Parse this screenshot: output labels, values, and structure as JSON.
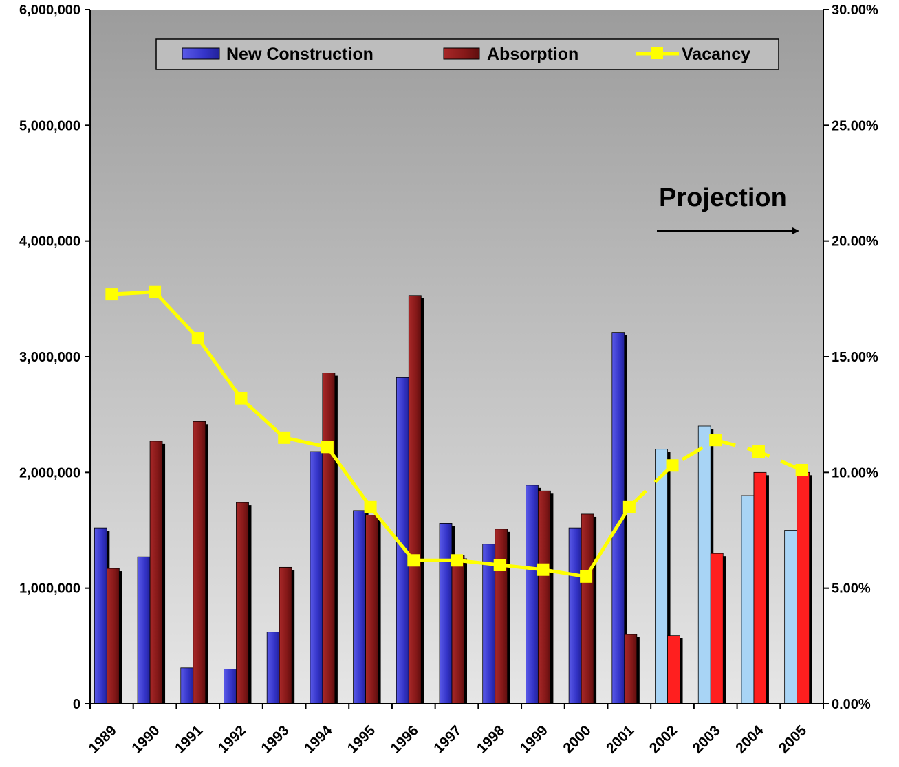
{
  "chart_data": {
    "type": "bar",
    "categories": [
      "1989",
      "1990",
      "1991",
      "1992",
      "1993",
      "1994",
      "1995",
      "1996",
      "1997",
      "1998",
      "1999",
      "2000",
      "2001",
      "2002",
      "2003",
      "2004",
      "2005"
    ],
    "series": [
      {
        "name": "New Construction",
        "kind": "bar",
        "axis": "left",
        "values": [
          1520000,
          1270000,
          310000,
          300000,
          620000,
          2180000,
          1670000,
          2820000,
          1560000,
          1380000,
          1890000,
          1520000,
          3210000,
          2200000,
          2400000,
          1800000,
          1500000
        ],
        "color": "#3f3fd0",
        "projection_color": "#a8d4f5"
      },
      {
        "name": "Absorption",
        "kind": "bar",
        "axis": "left",
        "values": [
          1170000,
          2270000,
          2440000,
          1740000,
          1180000,
          2860000,
          1630000,
          3530000,
          1280000,
          1510000,
          1840000,
          1640000,
          600000,
          590000,
          1300000,
          2000000,
          2000000
        ],
        "color": "#8b1a1a",
        "projection_color": "#ff1f1f"
      },
      {
        "name": "Vacancy",
        "kind": "line",
        "axis": "right",
        "values": [
          17.7,
          17.8,
          15.8,
          13.2,
          11.5,
          11.1,
          8.5,
          6.2,
          6.2,
          6.0,
          5.8,
          5.5,
          8.5,
          10.3,
          11.4,
          10.9,
          10.1
        ],
        "color": "#ffff00"
      }
    ],
    "projection_start_index": 13,
    "left_axis": {
      "ylim": [
        0,
        6000000
      ],
      "ticks": [
        0,
        1000000,
        2000000,
        3000000,
        4000000,
        5000000,
        6000000
      ],
      "tick_labels": [
        "0",
        "1,000,000",
        "2,000,000",
        "3,000,000",
        "4,000,000",
        "5,000,000",
        "6,000,000"
      ]
    },
    "right_axis": {
      "ylim": [
        0,
        30
      ],
      "ticks": [
        0,
        5,
        10,
        15,
        20,
        25,
        30
      ],
      "tick_labels": [
        "0.00%",
        "5.00%",
        "10.00%",
        "15.00%",
        "20.00%",
        "25.00%",
        "30.00%"
      ]
    },
    "annotation": "Projection",
    "legend": {
      "placement": "top-center",
      "items": [
        "New Construction",
        "Absorption",
        "Vacancy"
      ]
    },
    "grid": false,
    "plot_background": "gradient-gray"
  }
}
